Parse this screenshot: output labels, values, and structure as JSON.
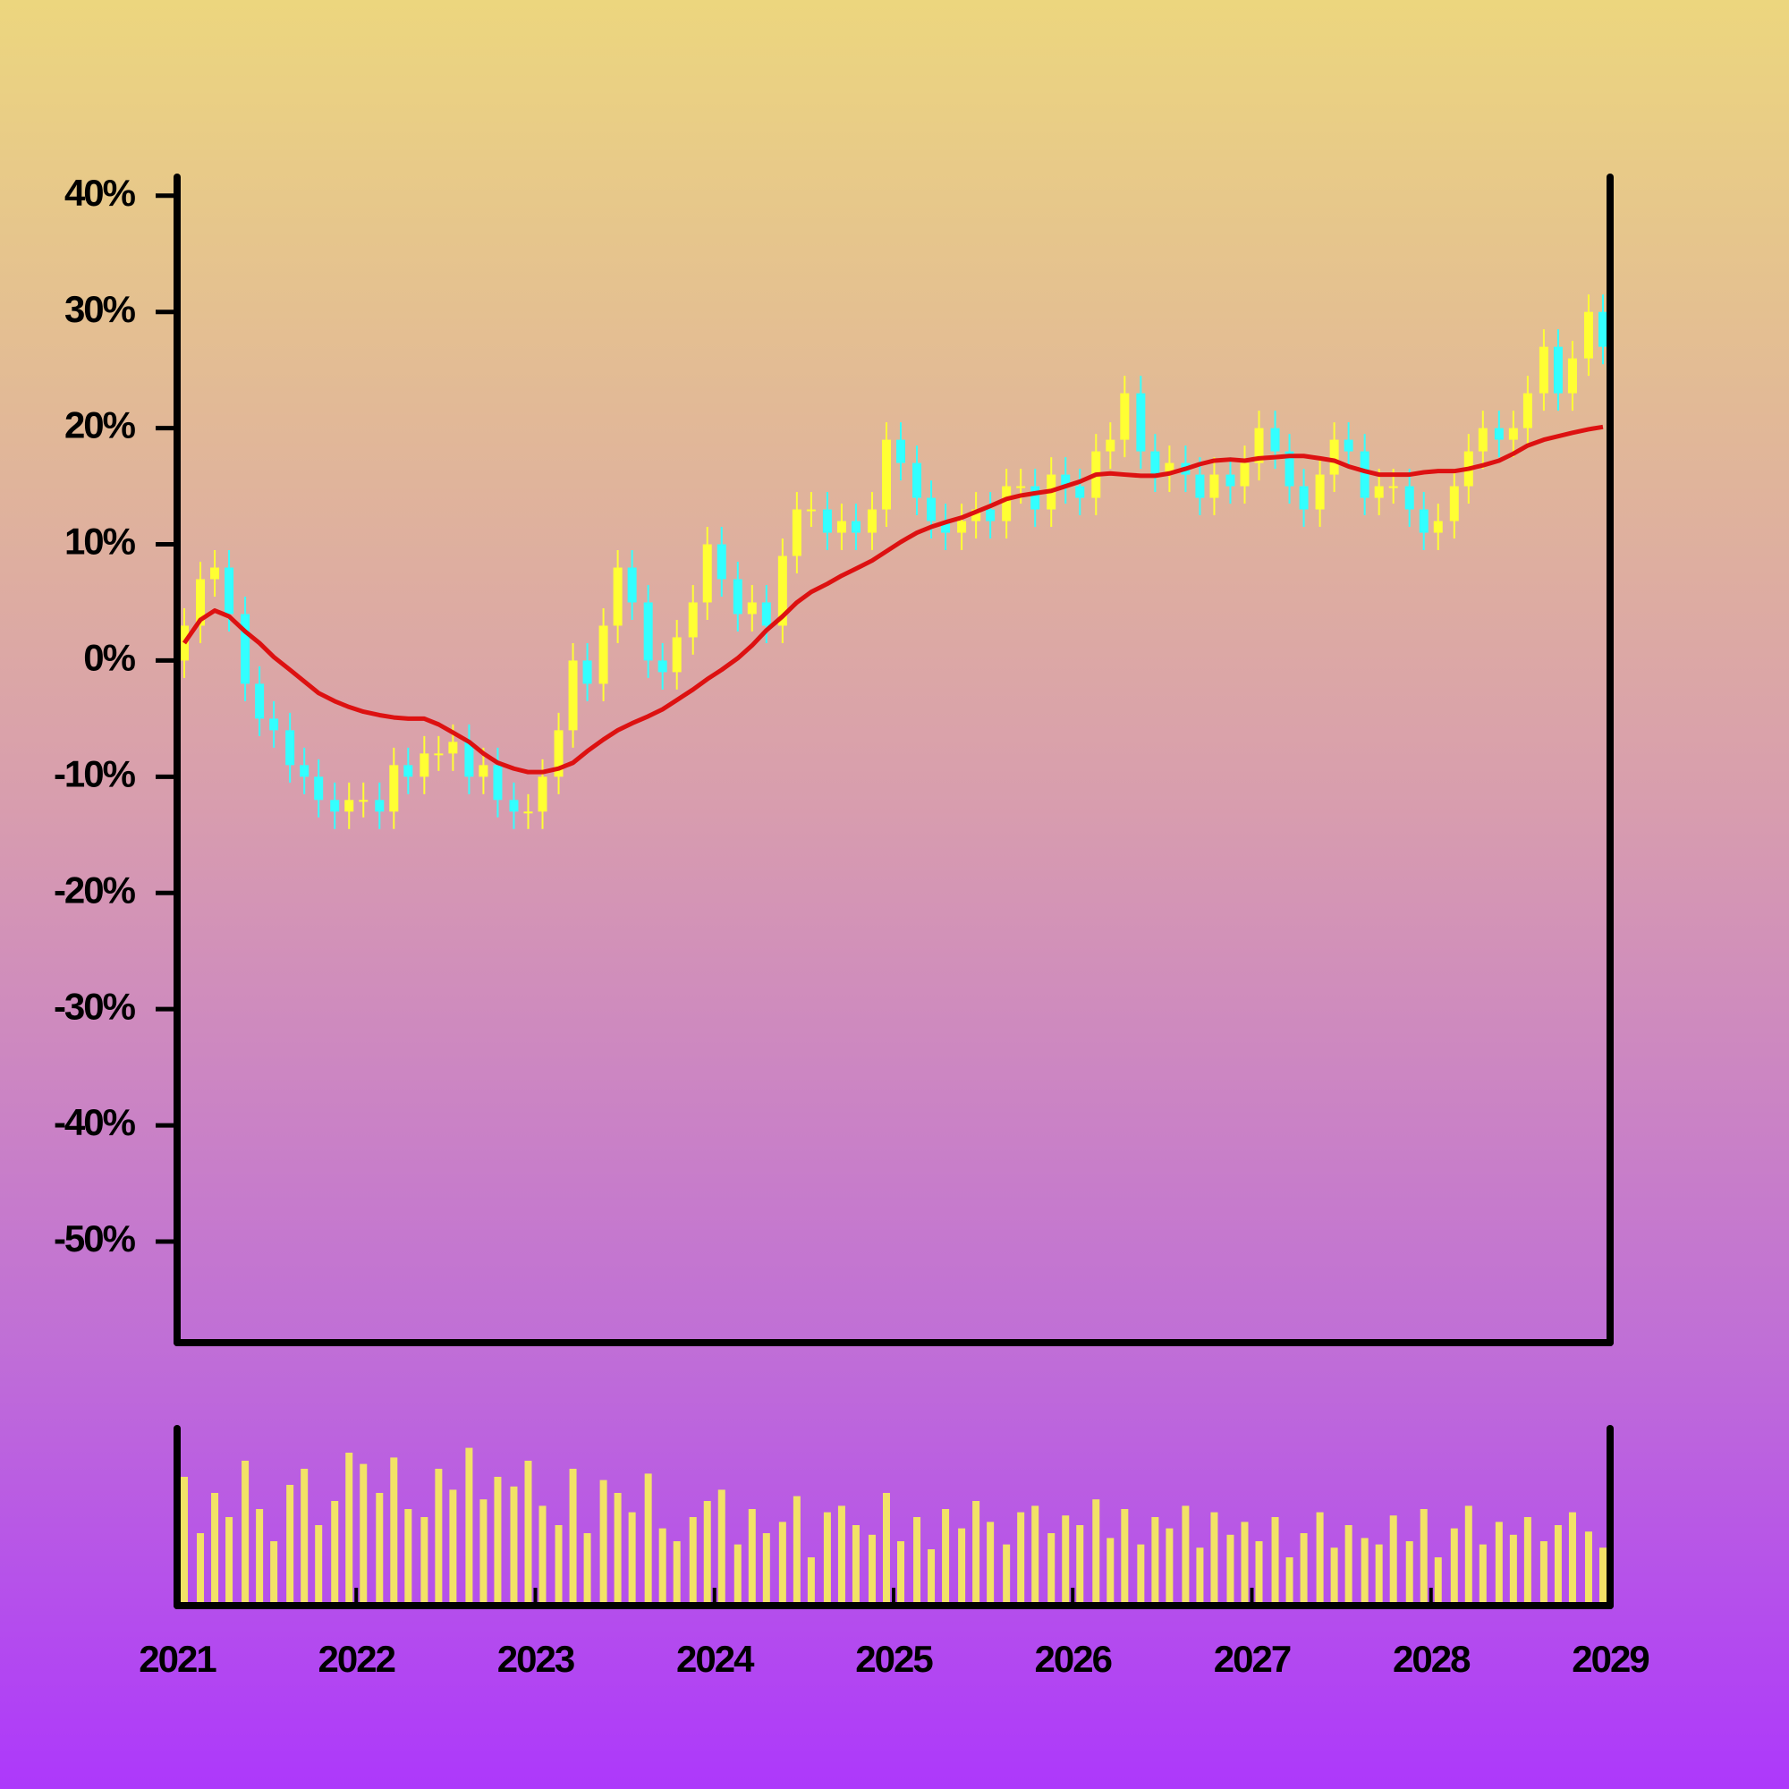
{
  "chart_data": {
    "type": "candlestick",
    "x": [
      2021.04,
      2021.13,
      2021.21,
      2021.29,
      2021.38,
      2021.46,
      2021.54,
      2021.63,
      2021.71,
      2021.79,
      2021.88,
      2021.96,
      2022.04,
      2022.13,
      2022.21,
      2022.29,
      2022.38,
      2022.46,
      2022.54,
      2022.63,
      2022.71,
      2022.79,
      2022.88,
      2022.96,
      2023.04,
      2023.13,
      2023.21,
      2023.29,
      2023.38,
      2023.46,
      2023.54,
      2023.63,
      2023.71,
      2023.79,
      2023.88,
      2023.96,
      2024.04,
      2024.13,
      2024.21,
      2024.29,
      2024.38,
      2024.46,
      2024.54,
      2024.63,
      2024.71,
      2024.79,
      2024.88,
      2024.96,
      2025.04,
      2025.13,
      2025.21,
      2025.29,
      2025.38,
      2025.46,
      2025.54,
      2025.63,
      2025.71,
      2025.79,
      2025.88,
      2025.96,
      2026.04,
      2026.13,
      2026.21,
      2026.29,
      2026.38,
      2026.46,
      2026.54,
      2026.63,
      2026.71,
      2026.79,
      2026.88,
      2026.96,
      2027.04,
      2027.13,
      2027.21,
      2027.29,
      2027.38,
      2027.46,
      2027.54,
      2027.63,
      2027.71,
      2027.79,
      2027.88,
      2027.96,
      2028.04,
      2028.13,
      2028.21,
      2028.29,
      2028.38,
      2028.46,
      2028.54,
      2028.63,
      2028.71,
      2028.79,
      2028.88,
      2028.96
    ],
    "open": [
      0,
      3,
      7,
      8,
      4,
      -2,
      -5,
      -6,
      -9,
      -10,
      -12,
      -13,
      -12,
      -12,
      -13,
      -9,
      -10,
      -8,
      -8,
      -7,
      -10,
      -9,
      -12,
      -13,
      -13,
      -10,
      -6,
      0,
      -2,
      3,
      8,
      5,
      0,
      -1,
      2,
      5,
      10,
      7,
      4,
      5,
      3,
      9,
      13,
      13,
      11,
      12,
      11,
      13,
      19,
      17,
      14,
      12,
      11,
      12,
      13,
      12,
      15,
      15,
      13,
      16,
      15,
      14,
      18,
      19,
      23,
      18,
      16,
      17,
      16,
      14,
      16,
      15,
      17,
      20,
      18,
      15,
      13,
      16,
      19,
      18,
      14,
      15,
      15,
      13,
      11,
      12,
      15,
      18,
      20,
      19,
      20,
      23,
      27,
      23,
      26,
      30
    ],
    "high": [
      4.5,
      8.5,
      9.5,
      9.5,
      5.5,
      -0.5,
      -3.5,
      -4.5,
      -7.5,
      -8.5,
      -10.5,
      -10.5,
      -10.5,
      -10.5,
      -7.5,
      -7.5,
      -6.5,
      -6.5,
      -5.5,
      -5.5,
      -7.5,
      -7.5,
      -10.5,
      -11.5,
      -8.5,
      -4.5,
      1.5,
      1.5,
      4.5,
      9.5,
      9.5,
      6.5,
      1.5,
      3.5,
      6.5,
      11.5,
      11.5,
      8.5,
      6.5,
      6.5,
      10.5,
      14.5,
      14.5,
      14.5,
      13.5,
      13.5,
      14.5,
      20.5,
      20.5,
      18.5,
      15.5,
      13.5,
      13.5,
      14.5,
      14.5,
      16.5,
      16.5,
      16.5,
      17.5,
      17.5,
      16.5,
      19.5,
      20.5,
      24.5,
      24.5,
      19.5,
      18.5,
      18.5,
      17.5,
      17.5,
      17.5,
      18.5,
      21.5,
      21.5,
      19.5,
      16.5,
      17.5,
      20.5,
      20.5,
      19.5,
      16.5,
      16.5,
      16.5,
      14.5,
      13.5,
      16.5,
      19.5,
      21.5,
      21.5,
      21.5,
      24.5,
      28.5,
      28.5,
      27.5,
      31.5,
      31.5
    ],
    "low": [
      -1.5,
      1.5,
      5.5,
      2.5,
      -3.5,
      -6.5,
      -7.5,
      -10.5,
      -11.5,
      -13.5,
      -14.5,
      -14.5,
      -13.5,
      -14.5,
      -14.5,
      -11.5,
      -11.5,
      -9.5,
      -9.5,
      -11.5,
      -11.5,
      -13.5,
      -14.5,
      -14.5,
      -14.5,
      -11.5,
      -7.5,
      -3.5,
      -3.5,
      1.5,
      3.5,
      -1.5,
      -2.5,
      -2.5,
      0.5,
      3.5,
      5.5,
      2.5,
      2.5,
      1.5,
      1.5,
      7.5,
      11.5,
      9.5,
      9.5,
      9.5,
      9.5,
      11.5,
      15.5,
      12.5,
      10.5,
      9.5,
      9.5,
      10.5,
      10.5,
      10.5,
      13.5,
      11.5,
      11.5,
      13.5,
      12.5,
      12.5,
      16.5,
      17.5,
      16.5,
      14.5,
      14.5,
      14.5,
      12.5,
      12.5,
      13.5,
      13.5,
      15.5,
      16.5,
      13.5,
      11.5,
      11.5,
      14.5,
      16.5,
      12.5,
      12.5,
      13.5,
      11.5,
      9.5,
      9.5,
      10.5,
      13.5,
      16.5,
      17.5,
      17.5,
      18.5,
      21.5,
      21.5,
      21.5,
      24.5,
      25.5
    ],
    "close": [
      3,
      7,
      8,
      4,
      -2,
      -5,
      -6,
      -9,
      -10,
      -12,
      -13,
      -12,
      -12,
      -13,
      -9,
      -10,
      -8,
      -8,
      -7,
      -10,
      -9,
      -12,
      -13,
      -13,
      -10,
      -6,
      0,
      -2,
      3,
      8,
      5,
      0,
      -1,
      2,
      5,
      10,
      7,
      4,
      5,
      3,
      9,
      13,
      13,
      11,
      12,
      11,
      13,
      19,
      17,
      14,
      12,
      11,
      12,
      13,
      12,
      15,
      15,
      13,
      16,
      15,
      14,
      18,
      19,
      23,
      18,
      16,
      17,
      16,
      14,
      16,
      15,
      17,
      20,
      18,
      15,
      13,
      16,
      19,
      18,
      14,
      15,
      15,
      13,
      11,
      12,
      15,
      18,
      20,
      19,
      20,
      23,
      27,
      23,
      26,
      30,
      27
    ],
    "moving_average": [
      1.5,
      3.5,
      4.3,
      3.8,
      2.5,
      1.5,
      0.3,
      -0.8,
      -1.8,
      -2.8,
      -3.5,
      -4,
      -4.4,
      -4.7,
      -4.9,
      -5,
      -5,
      -5.5,
      -6.2,
      -7,
      -8,
      -8.8,
      -9.3,
      -9.6,
      -9.6,
      -9.3,
      -8.8,
      -7.8,
      -6.8,
      -6,
      -5.4,
      -4.8,
      -4.2,
      -3.4,
      -2.5,
      -1.6,
      -0.8,
      0.2,
      1.3,
      2.6,
      3.8,
      5,
      5.9,
      6.6,
      7.3,
      7.9,
      8.6,
      9.4,
      10.2,
      11,
      11.5,
      11.9,
      12.3,
      12.8,
      13.3,
      13.9,
      14.2,
      14.4,
      14.6,
      15,
      15.4,
      16,
      16.1,
      16,
      15.9,
      15.9,
      16.1,
      16.5,
      16.9,
      17.2,
      17.3,
      17.2,
      17.4,
      17.5,
      17.6,
      17.6,
      17.4,
      17.2,
      16.7,
      16.3,
      16,
      16,
      16,
      16.2,
      16.3,
      16.3,
      16.5,
      16.8,
      17.2,
      17.8,
      18.5,
      19,
      19.3,
      19.6,
      19.9,
      20.1
    ],
    "volume": [
      80,
      45,
      70,
      55,
      90,
      60,
      40,
      75,
      85,
      50,
      65,
      95,
      88,
      70,
      92,
      60,
      55,
      85,
      72,
      98,
      66,
      80,
      74,
      90,
      62,
      50,
      85,
      45,
      78,
      70,
      58,
      82,
      48,
      40,
      55,
      65,
      72,
      38,
      60,
      45,
      52,
      68,
      30,
      58,
      62,
      50,
      44,
      70,
      40,
      55,
      35,
      60,
      48,
      65,
      52,
      38,
      58,
      62,
      45,
      56,
      50,
      66,
      42,
      60,
      38,
      55,
      48,
      62,
      36,
      58,
      44,
      52,
      40,
      55,
      30,
      45,
      58,
      36,
      50,
      42,
      38,
      56,
      40,
      60,
      30,
      48,
      62,
      38,
      52,
      44,
      55,
      40,
      50,
      58,
      46,
      36
    ],
    "up_color": "#ffff33",
    "down_color": "#33ffff",
    "line_color": "#dd1111",
    "volume_color": "#f2e266",
    "xlim": [
      2021,
      2029
    ],
    "xticks": [
      2021,
      2022,
      2023,
      2024,
      2025,
      2026,
      2027,
      2028,
      2029
    ],
    "ylim": [
      -58.7,
      41.6
    ],
    "yticks": [
      {
        "value": 40,
        "label": "40%"
      },
      {
        "value": 30,
        "label": "30%"
      },
      {
        "value": 20,
        "label": "20%"
      },
      {
        "value": 10,
        "label": "10%"
      },
      {
        "value": 0,
        "label": "0%"
      },
      {
        "value": -10,
        "label": "-10%"
      },
      {
        "value": -20,
        "label": "-20%"
      },
      {
        "value": -30,
        "label": "-30%"
      },
      {
        "value": -40,
        "label": "-40%"
      },
      {
        "value": -50,
        "label": "-50%"
      }
    ],
    "volume_ylim": [
      0,
      110
    ]
  }
}
